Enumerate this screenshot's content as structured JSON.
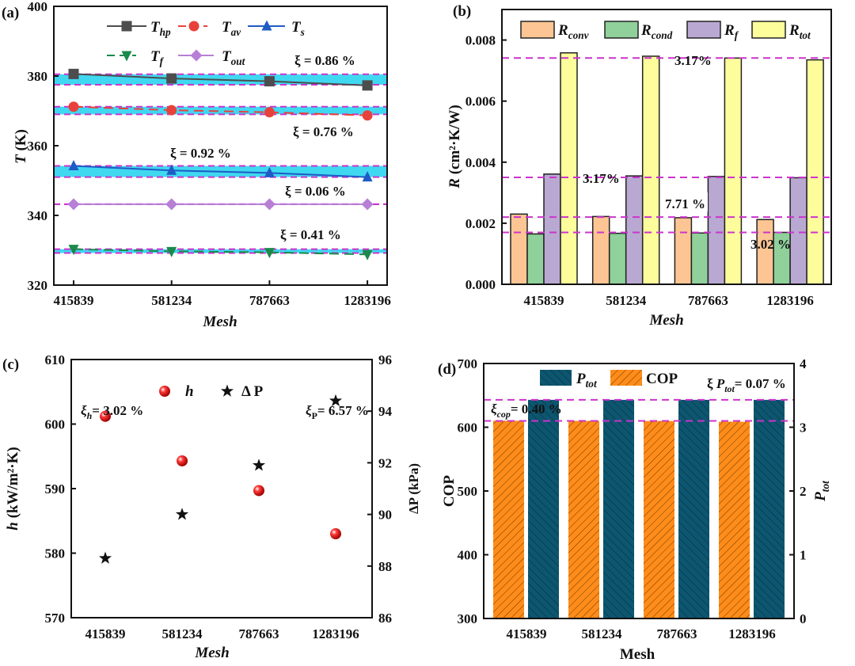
{
  "chart_data": [
    {
      "panel_label": "(a)",
      "type": "line",
      "categories": [
        "415839",
        "581234",
        "787663",
        "1283196"
      ],
      "xlabel": "Mesh",
      "ylabel": {
        "base": "T",
        "rest": " (K)"
      },
      "ylim": [
        320,
        400
      ],
      "yticks": [
        "320",
        "340",
        "360",
        "380",
        "400"
      ],
      "series": [
        {
          "base": "T",
          "sub": "hp",
          "values": [
            380.6,
            379.3,
            378.5,
            377.3
          ],
          "color": "#4d4d4d",
          "marker": "square",
          "dashed": false
        },
        {
          "base": "T",
          "sub": "av",
          "values": [
            371.2,
            370.2,
            369.6,
            368.7
          ],
          "color": "#e8413c",
          "marker": "circle",
          "dashed": true
        },
        {
          "base": "T",
          "sub": "s",
          "values": [
            354.2,
            352.9,
            352.2,
            351.0
          ],
          "color": "#1f5bc6",
          "marker": "triangle-up",
          "dashed": false
        },
        {
          "base": "T",
          "sub": "f",
          "values": [
            330.3,
            329.7,
            329.4,
            328.8
          ],
          "color": "#1a8a4a",
          "marker": "triangle-down",
          "dashed": true
        },
        {
          "base": "T",
          "sub": "out",
          "values": [
            343.2,
            343.2,
            343.2,
            343.2
          ],
          "color": "#b77fd6",
          "marker": "diamond",
          "dashed": false
        }
      ],
      "bands": [
        [
          377.5,
          380.5
        ],
        [
          369.0,
          371.2
        ],
        [
          351.0,
          354.2
        ],
        [
          343.2,
          343.2
        ],
        [
          329.2,
          330.3
        ]
      ],
      "band_color": "#3fd8f0",
      "ref_line_color": "#cc33cc",
      "annotations": [
        "ξ = 0.86 %",
        "ξ = 0.76 %",
        "ξ = 0.92 %",
        "ξ = 0.06 %",
        "ξ = 0.41 %"
      ]
    },
    {
      "panel_label": "(b)",
      "type": "bar",
      "categories": [
        "415839",
        "581234",
        "787663",
        "1283196"
      ],
      "xlabel": "Mesh",
      "ylabel": {
        "base": "R",
        "rest": " (cm²·K/W)"
      },
      "ylim": [
        0,
        0.009
      ],
      "yticks": [
        "0.000",
        "0.002",
        "0.004",
        "0.006",
        "0.008"
      ],
      "series": [
        {
          "base": "R",
          "sub": "conv",
          "values": [
            0.0023,
            0.00222,
            0.00218,
            0.00212
          ],
          "color": "#fdc593"
        },
        {
          "base": "R",
          "sub": "cond",
          "values": [
            0.00165,
            0.00167,
            0.00168,
            0.0017
          ],
          "color": "#8fd09b"
        },
        {
          "base": "R",
          "sub": "f",
          "values": [
            0.00361,
            0.00355,
            0.00353,
            0.00349
          ],
          "color": "#b9a9d2"
        },
        {
          "base": "R",
          "sub": "tot",
          "values": [
            0.00758,
            0.00747,
            0.00741,
            0.00735
          ],
          "color": "#fdfd9c"
        }
      ],
      "ref_lines": [
        0.00741,
        0.0035,
        0.0022,
        0.0017
      ],
      "ref_line_color": "#cc33cc",
      "annotations": [
        "3.17%",
        "3.17%",
        "7.71 %",
        "3.02 %"
      ]
    },
    {
      "panel_label": "(c)",
      "type": "scatter",
      "categories": [
        "415839",
        "581234",
        "787663",
        "1283196"
      ],
      "xlabel": "Mesh",
      "ylabel_left": {
        "base": "h",
        "rest": " (kW/m²·K)"
      },
      "ylabel_right": "ΔP (kPa)",
      "ylim_left": [
        570,
        610
      ],
      "ylim_right": [
        86,
        96
      ],
      "yticks_left": [
        "570",
        "580",
        "590",
        "600",
        "610"
      ],
      "yticks_right": [
        "86",
        "88",
        "90",
        "92",
        "94",
        "96"
      ],
      "series": [
        {
          "name": "h",
          "axis": "left",
          "values": [
            601.2,
            594.3,
            589.7,
            583.0
          ],
          "color": "#e01818",
          "marker": "sphere"
        },
        {
          "name": "Δ P",
          "axis": "right",
          "values": [
            88.3,
            90.0,
            91.9,
            94.4
          ],
          "color": "#111111",
          "marker": "star"
        }
      ],
      "annotations": [
        {
          "base": "ξ",
          "sub": "h",
          "rest": "= 3.02 %"
        },
        {
          "base": "ξ",
          "sub": "P",
          "rest": "= 6.57 %"
        }
      ]
    },
    {
      "panel_label": "(d)",
      "type": "bar",
      "categories": [
        "415839",
        "581234",
        "787663",
        "1283196"
      ],
      "xlabel": "Mesh",
      "ylabel_left": "COP",
      "ylabel_right": {
        "base": "P",
        "sub": "tot"
      },
      "ylim_left": [
        300,
        700
      ],
      "ylim_right": [
        0,
        4
      ],
      "yticks_left": [
        "300",
        "400",
        "500",
        "600",
        "700"
      ],
      "yticks_right": [
        "0",
        "1",
        "2",
        "3",
        "4"
      ],
      "series": [
        {
          "name": "COP",
          "axis": "left",
          "values": [
            610.2,
            610.0,
            609.8,
            608.6
          ],
          "color": "#ff8c1a"
        },
        {
          "base": "P",
          "sub": "tot",
          "axis": "right",
          "values": [
            3.43,
            3.43,
            3.43,
            3.43
          ],
          "color": "#0d5670"
        }
      ],
      "ref_lines_left": [
        643,
        610
      ],
      "ref_line_color": "#cc33cc",
      "annotations": [
        {
          "pre": "ξ ",
          "base": "P",
          "sub": "tot",
          "rest": "= 0.07 %"
        },
        {
          "base": "ξ",
          "sub": "cop",
          "rest": "= 0.40 %"
        }
      ]
    }
  ]
}
